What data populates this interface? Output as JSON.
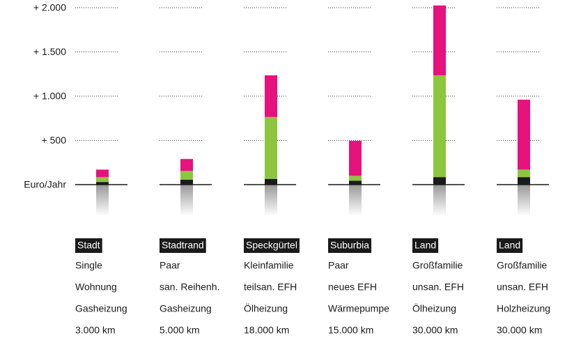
{
  "chart_data": {
    "type": "stacked-bar",
    "categories": [
      {
        "tag": "Stadt",
        "details": [
          "Single",
          "Wohnung",
          "Gasheizung",
          "3.000 km"
        ]
      },
      {
        "tag": "Stadtrand",
        "details": [
          "Paar",
          "san. Reihenh.",
          "Gasheizung",
          "5.000 km"
        ]
      },
      {
        "tag": "Speckgürtel",
        "details": [
          "Kleinfamilie",
          "teilsan. EFH",
          "Ölheizung",
          "18.000 km"
        ]
      },
      {
        "tag": "Suburbia",
        "details": [
          "Paar",
          "neues EFH",
          "Wärmepumpe",
          "15.000 km"
        ]
      },
      {
        "tag": "Land",
        "details": [
          "Großfamilie",
          "unsan. EFH",
          "Ölheizung",
          "30.000 km"
        ]
      },
      {
        "tag": "Land",
        "details": [
          "Großfamilie",
          "unsan. EFH",
          "Holzheizung",
          "30.000 km"
        ]
      }
    ],
    "series": [
      {
        "color": "#1a1a1a",
        "values": [
          30,
          55,
          65,
          45,
          85,
          85
        ]
      },
      {
        "color": "#8cc63f",
        "values": [
          55,
          100,
          700,
          55,
          1150,
          85
        ]
      },
      {
        "color": "#e6127d",
        "values": [
          85,
          135,
          470,
          395,
          790,
          790
        ]
      }
    ],
    "ylim": [
      0,
      2000
    ],
    "yticks": [
      {
        "value": 0,
        "label": "Euro/Jahr"
      },
      {
        "value": 500,
        "label": "+ 500"
      },
      {
        "value": 1000,
        "label": "+ 1.000"
      },
      {
        "value": 1500,
        "label": "+ 1.500"
      },
      {
        "value": 2000,
        "label": "+ 2.000"
      }
    ],
    "grid": true
  }
}
